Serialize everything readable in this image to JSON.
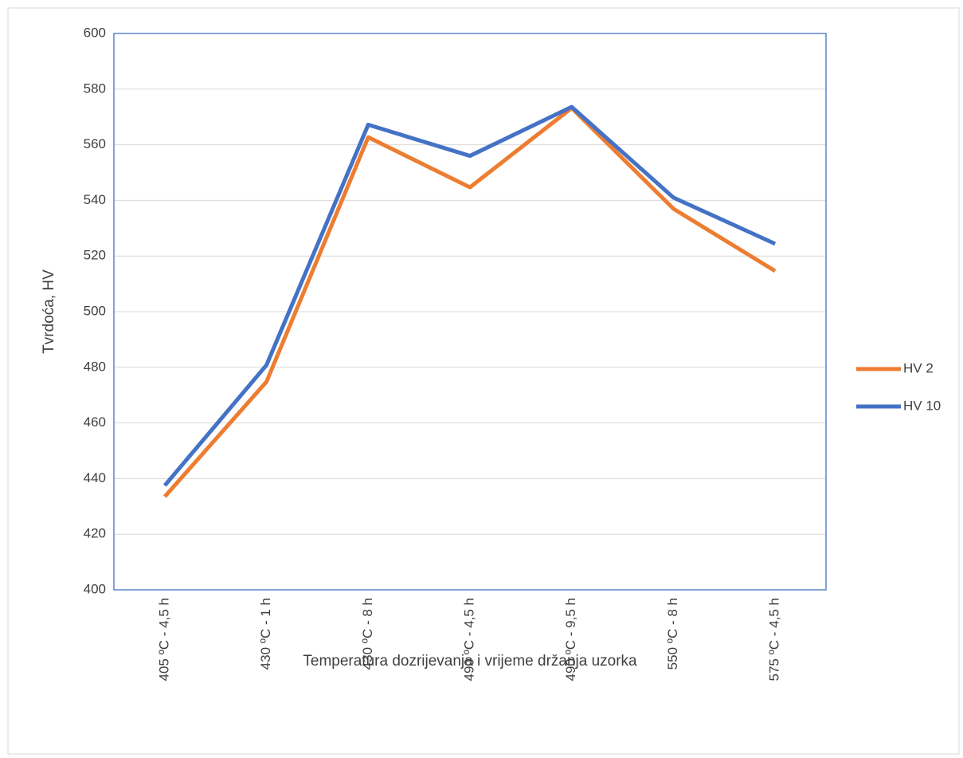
{
  "chart_data": {
    "type": "line",
    "y_label": "Tvrdoća, HV",
    "x_label": "Temperatura dozrijevanja i vrijeme držanja uzorka",
    "categories": [
      "405 ºC - 4,5 h",
      "430 ºC - 1 h",
      "430 ºC - 8 h",
      "490 ºC - 4,5 h",
      "490 ºC - 9,5 h",
      "550 ºC - 8 h",
      "575 ºC - 4,5 h"
    ],
    "series": [
      {
        "name": "HV 2",
        "color": "#ed7d31",
        "values": [
          433.5,
          474.8,
          562.7,
          544.7,
          573.2,
          537,
          514.6
        ]
      },
      {
        "name": "HV 10",
        "color": "#4472c4",
        "values": [
          437.5,
          480.8,
          567.2,
          556,
          573.6,
          541,
          524.4
        ]
      }
    ],
    "ylim": [
      400,
      600
    ],
    "yticks": [
      400,
      420,
      440,
      460,
      480,
      500,
      520,
      540,
      560,
      580,
      600
    ],
    "grid": true,
    "legend": "right",
    "frame_color": "#4472c4"
  }
}
